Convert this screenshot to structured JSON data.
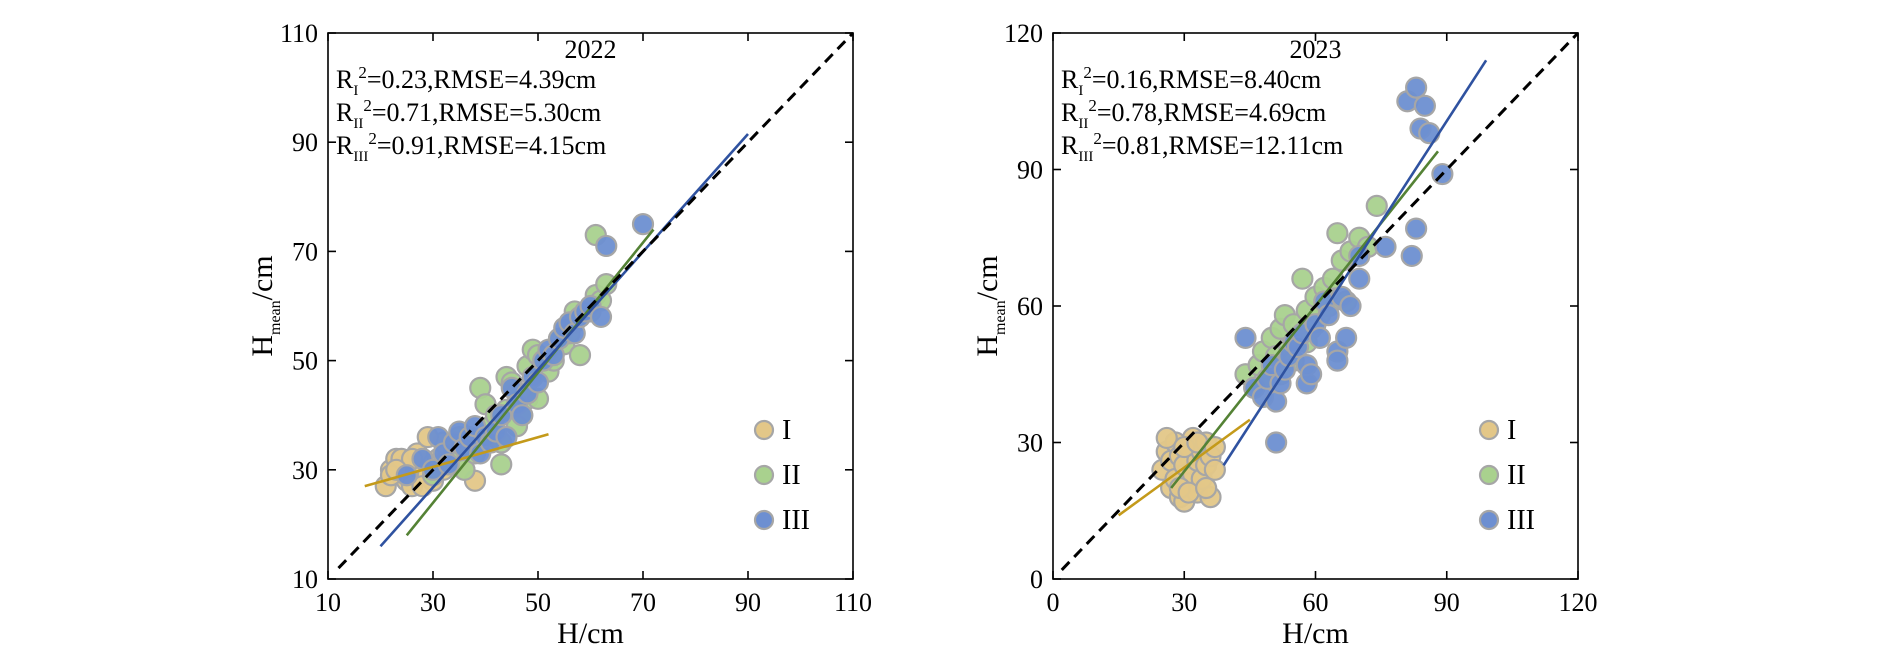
{
  "chart_data": [
    {
      "type": "scatter",
      "title": "2022",
      "xlabel": "H/cm",
      "ylabel_main": "H",
      "ylabel_sub": "mean",
      "ylabel_unit": "/cm",
      "xlim": [
        10,
        110
      ],
      "ylim": [
        10,
        110
      ],
      "xticks": [
        10,
        30,
        50,
        70,
        90,
        110
      ],
      "yticks": [
        10,
        30,
        50,
        70,
        90,
        110
      ],
      "stats": [
        {
          "sub": "I",
          "r2": "=0.23,RMSE=4.39cm"
        },
        {
          "sub": "II",
          "r2": "=0.71,RMSE=5.30cm"
        },
        {
          "sub": "III",
          "r2": "=0.91,RMSE=4.15cm"
        }
      ],
      "legend": [
        {
          "label": "I",
          "fill": "#E3C788",
          "line": "#C49A1A"
        },
        {
          "label": "II",
          "fill": "#A9D18E",
          "line": "#548235"
        },
        {
          "label": "III",
          "fill": "#6D8FD1",
          "line": "#2F52A0"
        }
      ],
      "identity_line": [
        [
          12,
          12
        ],
        [
          110,
          110
        ]
      ],
      "fit_lines": [
        {
          "name": "I",
          "x": [
            17,
            52
          ],
          "y": [
            27,
            36.5
          ]
        },
        {
          "name": "II",
          "x": [
            25,
            72
          ],
          "y": [
            18,
            74
          ]
        },
        {
          "name": "III",
          "x": [
            20,
            90
          ],
          "y": [
            16,
            91.5
          ]
        }
      ],
      "series": [
        {
          "name": "I",
          "points": [
            [
              21,
              27
            ],
            [
              22,
              30
            ],
            [
              23,
              32
            ],
            [
              24,
              29
            ],
            [
              25,
              31
            ],
            [
              25,
              28
            ],
            [
              26,
              30
            ],
            [
              27,
              29
            ],
            [
              28,
              31
            ],
            [
              22,
              29
            ],
            [
              24,
              32
            ],
            [
              26,
              27
            ],
            [
              27,
              33
            ],
            [
              28,
              30
            ],
            [
              29,
              29
            ],
            [
              30,
              31
            ],
            [
              31,
              32
            ],
            [
              32,
              30
            ],
            [
              33,
              33
            ],
            [
              34,
              31
            ],
            [
              35,
              32
            ],
            [
              36,
              30
            ],
            [
              37,
              34
            ],
            [
              38,
              28
            ],
            [
              30,
              28
            ],
            [
              32,
              35
            ],
            [
              29,
              36
            ],
            [
              26,
              32
            ],
            [
              28,
              27
            ],
            [
              23,
              30
            ]
          ]
        },
        {
          "name": "II",
          "points": [
            [
              30,
              29
            ],
            [
              32,
              31
            ],
            [
              34,
              34
            ],
            [
              35,
              36
            ],
            [
              36,
              30
            ],
            [
              38,
              33
            ],
            [
              39,
              45
            ],
            [
              40,
              42
            ],
            [
              41,
              38
            ],
            [
              42,
              40
            ],
            [
              43,
              35
            ],
            [
              43,
              31
            ],
            [
              44,
              47
            ],
            [
              45,
              46
            ],
            [
              46,
              44
            ],
            [
              47,
              40
            ],
            [
              48,
              43
            ],
            [
              48,
              49
            ],
            [
              49,
              52
            ],
            [
              50,
              51
            ],
            [
              50,
              43
            ],
            [
              52,
              48
            ],
            [
              53,
              50
            ],
            [
              54,
              54
            ],
            [
              55,
              53
            ],
            [
              56,
              55
            ],
            [
              57,
              57
            ],
            [
              58,
              51
            ],
            [
              60,
              59
            ],
            [
              61,
              62
            ],
            [
              62,
              61
            ],
            [
              61,
              73
            ],
            [
              63,
              64
            ],
            [
              57,
              59
            ],
            [
              46,
              38
            ],
            [
              44,
              41
            ]
          ]
        },
        {
          "name": "III",
          "points": [
            [
              25,
              29
            ],
            [
              28,
              32
            ],
            [
              30,
              30
            ],
            [
              31,
              36
            ],
            [
              32,
              33
            ],
            [
              33,
              31
            ],
            [
              34,
              35
            ],
            [
              35,
              37
            ],
            [
              36,
              34
            ],
            [
              37,
              36
            ],
            [
              38,
              38
            ],
            [
              39,
              33
            ],
            [
              40,
              36
            ],
            [
              41,
              35
            ],
            [
              42,
              37
            ],
            [
              43,
              40
            ],
            [
              44,
              36
            ],
            [
              45,
              45
            ],
            [
              46,
              42
            ],
            [
              47,
              40
            ],
            [
              48,
              44
            ],
            [
              49,
              47
            ],
            [
              50,
              46
            ],
            [
              51,
              50
            ],
            [
              52,
              52
            ],
            [
              53,
              51
            ],
            [
              54,
              54
            ],
            [
              55,
              56
            ],
            [
              56,
              57
            ],
            [
              57,
              55
            ],
            [
              58,
              58
            ],
            [
              59,
              59
            ],
            [
              60,
              60
            ],
            [
              62,
              58
            ],
            [
              63,
              71
            ],
            [
              70,
              75
            ]
          ]
        }
      ]
    },
    {
      "type": "scatter",
      "title": "2023",
      "xlabel": "H/cm",
      "ylabel_main": "H",
      "ylabel_sub": "mean",
      "ylabel_unit": "/cm",
      "xlim": [
        0,
        120
      ],
      "ylim": [
        0,
        120
      ],
      "xticks": [
        0,
        30,
        60,
        90,
        120
      ],
      "yticks": [
        0,
        30,
        60,
        90,
        120
      ],
      "stats": [
        {
          "sub": "I",
          "r2": "=0.16,RMSE=8.40cm"
        },
        {
          "sub": "II",
          "r2": "=0.78,RMSE=4.69cm"
        },
        {
          "sub": "III",
          "r2": "=0.81,RMSE=12.11cm"
        }
      ],
      "legend": [
        {
          "label": "I",
          "fill": "#E3C788",
          "line": "#C49A1A"
        },
        {
          "label": "II",
          "fill": "#A9D18E",
          "line": "#548235"
        },
        {
          "label": "III",
          "fill": "#6D8FD1",
          "line": "#2F52A0"
        }
      ],
      "identity_line": [
        [
          2,
          2
        ],
        [
          120,
          120
        ]
      ],
      "fit_lines": [
        {
          "name": "I",
          "x": [
            15,
            45
          ],
          "y": [
            14,
            35
          ]
        },
        {
          "name": "II",
          "x": [
            27,
            88
          ],
          "y": [
            20,
            94
          ]
        },
        {
          "name": "III",
          "x": [
            39,
            99
          ],
          "y": [
            25,
            114
          ]
        }
      ],
      "series": [
        {
          "name": "I",
          "points": [
            [
              25,
              24
            ],
            [
              26,
              28
            ],
            [
              27,
              20
            ],
            [
              27,
              26
            ],
            [
              28,
              22
            ],
            [
              28,
              30
            ],
            [
              29,
              18
            ],
            [
              29,
              27
            ],
            [
              30,
              25
            ],
            [
              30,
              17
            ],
            [
              31,
              29
            ],
            [
              31,
              21
            ],
            [
              32,
              23
            ],
            [
              32,
              31
            ],
            [
              33,
              19
            ],
            [
              33,
              26
            ],
            [
              34,
              28
            ],
            [
              34,
              22
            ],
            [
              35,
              25
            ],
            [
              35,
              30
            ],
            [
              36,
              18
            ],
            [
              36,
              27
            ],
            [
              37,
              24
            ],
            [
              26,
              31
            ],
            [
              29,
              20
            ],
            [
              30,
              29
            ],
            [
              31,
              19
            ],
            [
              33,
              30
            ],
            [
              35,
              20
            ],
            [
              37,
              29
            ]
          ]
        },
        {
          "name": "II",
          "points": [
            [
              44,
              45
            ],
            [
              46,
              42
            ],
            [
              47,
              47
            ],
            [
              48,
              50
            ],
            [
              49,
              44
            ],
            [
              50,
              53
            ],
            [
              51,
              49
            ],
            [
              52,
              55
            ],
            [
              53,
              58
            ],
            [
              54,
              51
            ],
            [
              55,
              56
            ],
            [
              56,
              53
            ],
            [
              57,
              66
            ],
            [
              58,
              59
            ],
            [
              59,
              55
            ],
            [
              60,
              62
            ],
            [
              61,
              58
            ],
            [
              62,
              64
            ],
            [
              63,
              60
            ],
            [
              64,
              66
            ],
            [
              65,
              76
            ],
            [
              66,
              70
            ],
            [
              67,
              61
            ],
            [
              68,
              72
            ],
            [
              70,
              75
            ],
            [
              72,
              73
            ],
            [
              74,
              82
            ],
            [
              55,
              48
            ],
            [
              52,
              45
            ],
            [
              58,
              52
            ]
          ]
        },
        {
          "name": "III",
          "points": [
            [
              44,
              53
            ],
            [
              46,
              42
            ],
            [
              48,
              40
            ],
            [
              49,
              44
            ],
            [
              50,
              47
            ],
            [
              51,
              30
            ],
            [
              51,
              39
            ],
            [
              52,
              43
            ],
            [
              53,
              46
            ],
            [
              54,
              49
            ],
            [
              55,
              52
            ],
            [
              56,
              51
            ],
            [
              57,
              54
            ],
            [
              58,
              43
            ],
            [
              58,
              47
            ],
            [
              59,
              45
            ],
            [
              60,
              56
            ],
            [
              61,
              53
            ],
            [
              62,
              61
            ],
            [
              63,
              58
            ],
            [
              65,
              50
            ],
            [
              65,
              48
            ],
            [
              66,
              62
            ],
            [
              67,
              53
            ],
            [
              68,
              60
            ],
            [
              70,
              71
            ],
            [
              76,
              73
            ],
            [
              82,
              71
            ],
            [
              83,
              77
            ],
            [
              81,
              105
            ],
            [
              83,
              108
            ],
            [
              84,
              99
            ],
            [
              85,
              104
            ],
            [
              86,
              98
            ],
            [
              89,
              89
            ],
            [
              70,
              66
            ]
          ]
        }
      ]
    }
  ]
}
